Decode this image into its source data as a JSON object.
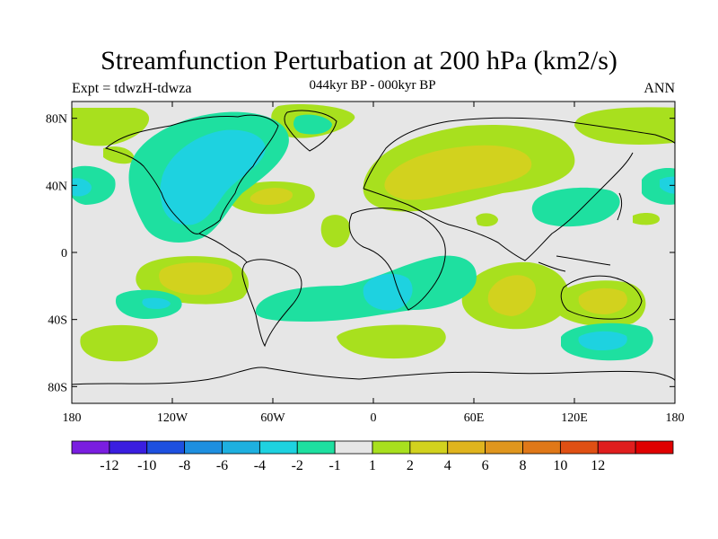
{
  "plot": {
    "title": "Streamfunction Perturbation at 200 hPa (km2/s)",
    "left_string": "Expt = tdwzH-tdwza",
    "center_string": "044kyr BP - 000kyr BP",
    "right_string": "ANN"
  },
  "axes": {
    "lat_labels": [
      "80N",
      "40N",
      "0",
      "40S",
      "80S"
    ],
    "lon_labels": [
      "180",
      "120W",
      "60W",
      "0",
      "60E",
      "120E",
      "180"
    ]
  },
  "colorbar": {
    "colors": [
      "#7a1ee0",
      "#3a1ee0",
      "#1e50e0",
      "#1e8fe0",
      "#1eb0e0",
      "#1ed2e0",
      "#1ee0a0",
      "#e6e6e6",
      "#a8e01e",
      "#d2d21e",
      "#e0b41e",
      "#e0961e",
      "#e07818",
      "#e05014",
      "#e01e1e",
      "#e00000"
    ],
    "labels": [
      "-12",
      "-10",
      "-8",
      "-6",
      "-4",
      "-2",
      "-1",
      "1",
      "2",
      "4",
      "6",
      "8",
      "10",
      "12"
    ]
  },
  "colors": {
    "background": "#e6e6e6",
    "neg_1": "#1ee0a0",
    "neg_2": "#1ed2e0",
    "pos_1": "#a8e01e",
    "pos_2": "#d2d21e"
  }
}
